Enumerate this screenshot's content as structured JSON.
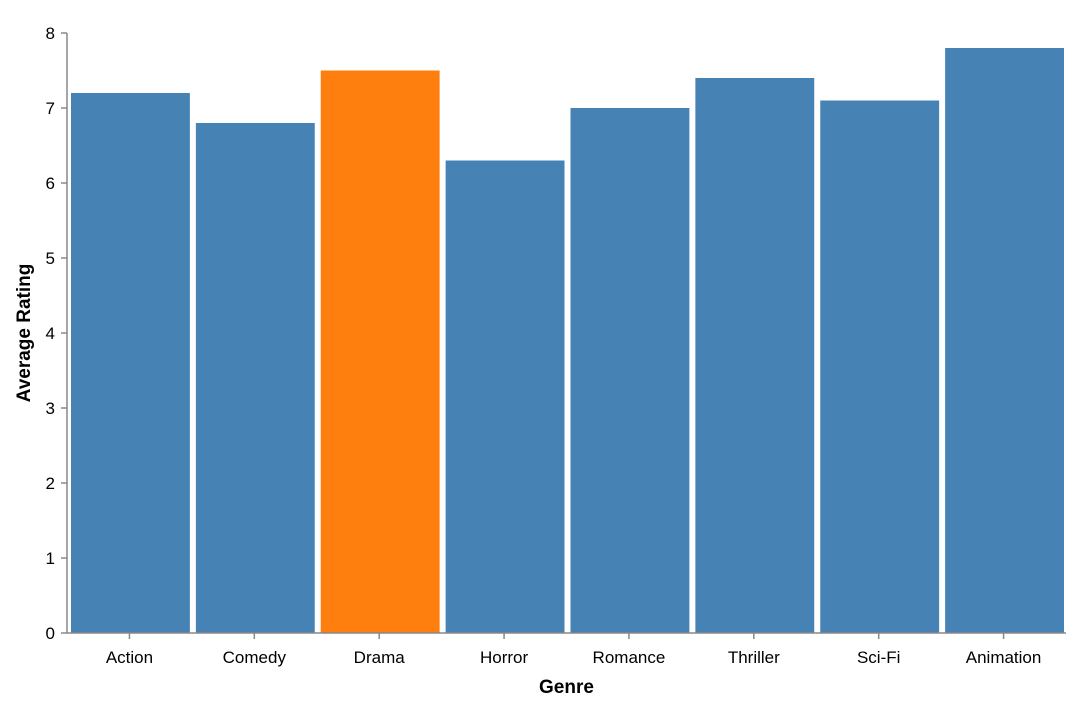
{
  "chart_data": {
    "type": "bar",
    "categories": [
      "Action",
      "Comedy",
      "Drama",
      "Horror",
      "Romance",
      "Thriller",
      "Sci-Fi",
      "Animation"
    ],
    "values": [
      7.2,
      6.8,
      7.5,
      6.3,
      7.0,
      7.4,
      7.1,
      7.8
    ],
    "xlabel": "Genre",
    "ylabel": "Average Rating",
    "ylim": [
      0,
      8
    ],
    "yticks": [
      "0",
      "1",
      "2",
      "3",
      "4",
      "5",
      "6",
      "7",
      "8"
    ],
    "grid": false,
    "colors": {
      "default": "#4682b4",
      "highlight": "#ff7f0e"
    },
    "highlighted_category": "Drama"
  }
}
